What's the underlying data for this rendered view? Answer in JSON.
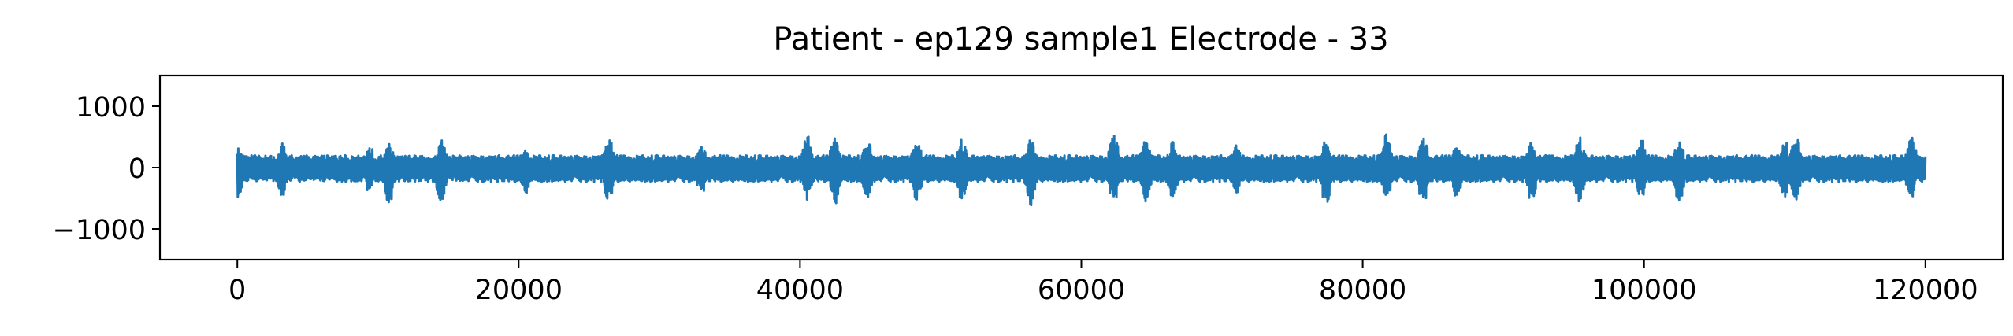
{
  "chart_data": {
    "type": "line",
    "title": "Patient - ep129 sample1 Electrode - 33",
    "xlabel": "",
    "ylabel": "",
    "xlim": [
      -5500,
      125500
    ],
    "ylim": [
      -1500,
      1500
    ],
    "x_ticks": [
      0,
      20000,
      40000,
      60000,
      80000,
      100000,
      120000
    ],
    "x_tick_labels": [
      "0",
      "20000",
      "40000",
      "60000",
      "80000",
      "100000",
      "120000"
    ],
    "y_ticks": [
      -1000,
      0,
      1000
    ],
    "y_tick_labels": [
      "−1000",
      "0",
      "1000"
    ],
    "grid": false,
    "legend": "none",
    "line_color": "#1f77b4",
    "series": [
      {
        "x_range": [
          0,
          120000
        ],
        "baseline": -20,
        "typical_envelope": [
          -230,
          200
        ],
        "burst_peaks": [
          {
            "x": 0,
            "max": 340,
            "min": -520
          },
          {
            "x": 3200,
            "max": 420,
            "min": -480
          },
          {
            "x": 9400,
            "max": 380,
            "min": -430
          },
          {
            "x": 10800,
            "max": 400,
            "min": -600
          },
          {
            "x": 14500,
            "max": 450,
            "min": -580
          },
          {
            "x": 20500,
            "max": 330,
            "min": -430
          },
          {
            "x": 26400,
            "max": 520,
            "min": -560
          },
          {
            "x": 33000,
            "max": 360,
            "min": -430
          },
          {
            "x": 40500,
            "max": 530,
            "min": -520
          },
          {
            "x": 42500,
            "max": 560,
            "min": -600
          },
          {
            "x": 44800,
            "max": 430,
            "min": -520
          },
          {
            "x": 48300,
            "max": 470,
            "min": -550
          },
          {
            "x": 51500,
            "max": 460,
            "min": -530
          },
          {
            "x": 56400,
            "max": 450,
            "min": -620
          },
          {
            "x": 62300,
            "max": 560,
            "min": -580
          },
          {
            "x": 64600,
            "max": 530,
            "min": -560
          },
          {
            "x": 66500,
            "max": 420,
            "min": -500
          },
          {
            "x": 71000,
            "max": 360,
            "min": -420
          },
          {
            "x": 77400,
            "max": 450,
            "min": -620
          },
          {
            "x": 81700,
            "max": 560,
            "min": -520
          },
          {
            "x": 84300,
            "max": 510,
            "min": -600
          },
          {
            "x": 86700,
            "max": 420,
            "min": -500
          },
          {
            "x": 92000,
            "max": 410,
            "min": -560
          },
          {
            "x": 95400,
            "max": 510,
            "min": -560
          },
          {
            "x": 99800,
            "max": 500,
            "min": -520
          },
          {
            "x": 102500,
            "max": 470,
            "min": -560
          },
          {
            "x": 110000,
            "max": 450,
            "min": -480
          },
          {
            "x": 110800,
            "max": 510,
            "min": -560
          },
          {
            "x": 119000,
            "max": 540,
            "min": -520
          }
        ]
      }
    ]
  }
}
